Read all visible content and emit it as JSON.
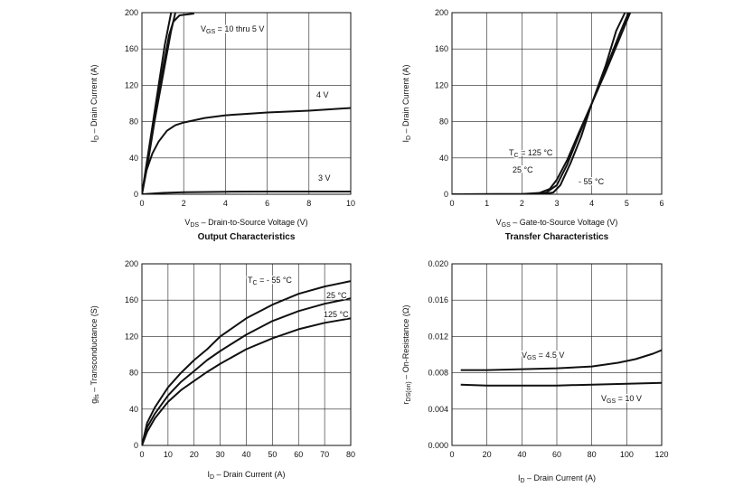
{
  "chart_data": [
    {
      "type": "line",
      "title": "Output Characteristics",
      "xlabel": {
        "main": "V",
        "sub": "DS",
        "rest": " – Drain-to-Source Voltage (V)"
      },
      "ylabel": {
        "main": "I",
        "sub": "D",
        "rest": " – Drain Current (A)"
      },
      "xlim": [
        0,
        10
      ],
      "ylim": [
        0,
        200
      ],
      "xticks": [
        "0",
        "2",
        "4",
        "6",
        "8",
        "10"
      ],
      "yticks": [
        "0",
        "40",
        "80",
        "120",
        "160",
        "200"
      ],
      "grid": true,
      "series": [
        {
          "name": "VGS = 10 thru 5 V",
          "points": [
            [
              0,
              0
            ],
            [
              0.2,
              30
            ],
            [
              0.5,
              75
            ],
            [
              0.8,
              120
            ],
            [
              1.1,
              165
            ],
            [
              1.4,
              200
            ]
          ]
        },
        {
          "name": "",
          "points": [
            [
              0,
              0
            ],
            [
              0.2,
              28
            ],
            [
              0.5,
              70
            ],
            [
              0.8,
              112
            ],
            [
              1.1,
              150
            ],
            [
              1.3,
              175
            ],
            [
              1.5,
              190
            ],
            [
              1.8,
              197
            ],
            [
              2.5,
              199
            ]
          ]
        },
        {
          "name": "",
          "points": [
            [
              0,
              0
            ],
            [
              0.25,
              30
            ],
            [
              0.6,
              80
            ],
            [
              1.0,
              130
            ],
            [
              1.4,
              180
            ],
            [
              1.6,
              200
            ]
          ]
        },
        {
          "name": "4 V",
          "points": [
            [
              0,
              0
            ],
            [
              0.2,
              25
            ],
            [
              0.5,
              45
            ],
            [
              0.8,
              58
            ],
            [
              1.2,
              70
            ],
            [
              1.6,
              76
            ],
            [
              2,
              79
            ],
            [
              3,
              84
            ],
            [
              4,
              87
            ],
            [
              6,
              90
            ],
            [
              8,
              92
            ],
            [
              10,
              95
            ]
          ]
        },
        {
          "name": "3 V",
          "points": [
            [
              0,
              0
            ],
            [
              1,
              1.5
            ],
            [
              2,
              2.2
            ],
            [
              4,
              2.8
            ],
            [
              6,
              3
            ],
            [
              8,
              3
            ],
            [
              10,
              3
            ]
          ]
        }
      ],
      "annotations": [
        {
          "main": "V",
          "sub": "GS",
          "rest": " = 10 thru 5 V"
        },
        {
          "main": "4 V",
          "sub": "",
          "rest": ""
        },
        {
          "main": "3 V",
          "sub": "",
          "rest": ""
        }
      ]
    },
    {
      "type": "line",
      "title": "Transfer Characteristics",
      "xlabel": {
        "main": "V",
        "sub": "GS",
        "rest": " – Gate-to-Source Voltage (V)"
      },
      "ylabel": {
        "main": "I",
        "sub": "D",
        "rest": " – Drain Current (A)"
      },
      "xlim": [
        0,
        6
      ],
      "ylim": [
        0,
        200
      ],
      "xticks": [
        "0",
        "1",
        "2",
        "3",
        "4",
        "5",
        "6"
      ],
      "yticks": [
        "0",
        "40",
        "80",
        "120",
        "160",
        "200"
      ],
      "grid": true,
      "series": [
        {
          "name": "TC = 125 °C",
          "points": [
            [
              0,
              0
            ],
            [
              2,
              0.3
            ],
            [
              2.5,
              1.5
            ],
            [
              2.8,
              6
            ],
            [
              3,
              16
            ],
            [
              3.3,
              38
            ],
            [
              3.6,
              65
            ],
            [
              4,
              100
            ],
            [
              4.4,
              135
            ],
            [
              4.8,
              172
            ],
            [
              5.1,
              200
            ]
          ]
        },
        {
          "name": "25 °C",
          "points": [
            [
              0,
              0
            ],
            [
              2.3,
              0.2
            ],
            [
              2.7,
              2
            ],
            [
              3,
              10
            ],
            [
              3.3,
              33
            ],
            [
              3.6,
              62
            ],
            [
              4,
              100
            ],
            [
              4.4,
              138
            ],
            [
              4.8,
              177
            ],
            [
              5.05,
              200
            ]
          ]
        },
        {
          "name": "-55 °C",
          "points": [
            [
              0,
              0
            ],
            [
              2.6,
              0.2
            ],
            [
              2.9,
              2
            ],
            [
              3.1,
              10
            ],
            [
              3.4,
              35
            ],
            [
              3.7,
              64
            ],
            [
              4,
              100
            ],
            [
              4.4,
              142
            ],
            [
              4.7,
              180
            ],
            [
              4.95,
              200
            ]
          ]
        }
      ],
      "annotations": [
        {
          "main": "T",
          "sub": "C",
          "rest": " = 125 °C"
        },
        {
          "main": "25 °C",
          "sub": "",
          "rest": ""
        },
        {
          "main": "- 55 °C",
          "sub": "",
          "rest": ""
        }
      ]
    },
    {
      "type": "line",
      "title": "",
      "xlabel": {
        "main": "I",
        "sub": "D",
        "rest": " – Drain Current (A)"
      },
      "ylabel": {
        "main": "g",
        "sub": "fs",
        "rest": " – Transconductance (S)"
      },
      "xlim": [
        0,
        80
      ],
      "ylim": [
        0,
        200
      ],
      "xticks": [
        "0",
        "10",
        "20",
        "30",
        "40",
        "50",
        "60",
        "70",
        "80"
      ],
      "yticks": [
        "0",
        "40",
        "80",
        "120",
        "160",
        "200"
      ],
      "grid": true,
      "series": [
        {
          "name": "TC = - 55 °C",
          "points": [
            [
              0,
              0
            ],
            [
              2,
              25
            ],
            [
              5,
              42
            ],
            [
              10,
              64
            ],
            [
              15,
              80
            ],
            [
              20,
              94
            ],
            [
              25,
              106
            ],
            [
              30,
              120
            ],
            [
              40,
              140
            ],
            [
              50,
              155
            ],
            [
              60,
              167
            ],
            [
              70,
              175
            ],
            [
              80,
              181
            ]
          ]
        },
        {
          "name": "25 °C",
          "points": [
            [
              0,
              0
            ],
            [
              2,
              20
            ],
            [
              5,
              35
            ],
            [
              10,
              55
            ],
            [
              15,
              70
            ],
            [
              20,
              82
            ],
            [
              25,
              94
            ],
            [
              30,
              104
            ],
            [
              40,
              122
            ],
            [
              50,
              137
            ],
            [
              60,
              148
            ],
            [
              70,
              156
            ],
            [
              80,
              162
            ]
          ]
        },
        {
          "name": "125 °C",
          "points": [
            [
              0,
              0
            ],
            [
              2,
              15
            ],
            [
              5,
              30
            ],
            [
              10,
              48
            ],
            [
              15,
              61
            ],
            [
              20,
              71
            ],
            [
              25,
              81
            ],
            [
              30,
              90
            ],
            [
              40,
              106
            ],
            [
              50,
              118
            ],
            [
              60,
              128
            ],
            [
              70,
              135
            ],
            [
              80,
              140
            ]
          ]
        }
      ],
      "annotations": [
        {
          "main": "T",
          "sub": "C",
          "rest": " = - 55 °C"
        },
        {
          "main": "25 °C",
          "sub": "",
          "rest": ""
        },
        {
          "main": "125 °C",
          "sub": "",
          "rest": ""
        }
      ]
    },
    {
      "type": "line",
      "title": "",
      "xlabel": {
        "main": "I",
        "sub": "D",
        "rest": " – Drain Current (A)"
      },
      "ylabel": {
        "main": "r",
        "sub": "DS(on)",
        "rest": " – On-Resistance (Ω)"
      },
      "xlim": [
        0,
        120
      ],
      "ylim": [
        0,
        0.02
      ],
      "xticks": [
        "0",
        "20",
        "40",
        "60",
        "80",
        "100",
        "120"
      ],
      "yticks": [
        "0.000",
        "0.004",
        "0.008",
        "0.012",
        "0.016",
        "0.020"
      ],
      "grid": true,
      "series": [
        {
          "name": "VGS = 4.5 V",
          "points": [
            [
              5,
              0.0083
            ],
            [
              20,
              0.0083
            ],
            [
              40,
              0.0084
            ],
            [
              60,
              0.0085
            ],
            [
              80,
              0.0087
            ],
            [
              95,
              0.0091
            ],
            [
              105,
              0.0095
            ],
            [
              115,
              0.0101
            ],
            [
              120,
              0.0105
            ]
          ]
        },
        {
          "name": "VGS = 10 V",
          "points": [
            [
              5,
              0.0067
            ],
            [
              20,
              0.0066
            ],
            [
              40,
              0.0066
            ],
            [
              60,
              0.0066
            ],
            [
              80,
              0.0067
            ],
            [
              100,
              0.0068
            ],
            [
              120,
              0.0069
            ]
          ]
        }
      ],
      "annotations": [
        {
          "main": "V",
          "sub": "GS",
          "rest": " = 4.5 V"
        },
        {
          "main": "V",
          "sub": "GS",
          "rest": " = 10 V"
        }
      ]
    }
  ]
}
